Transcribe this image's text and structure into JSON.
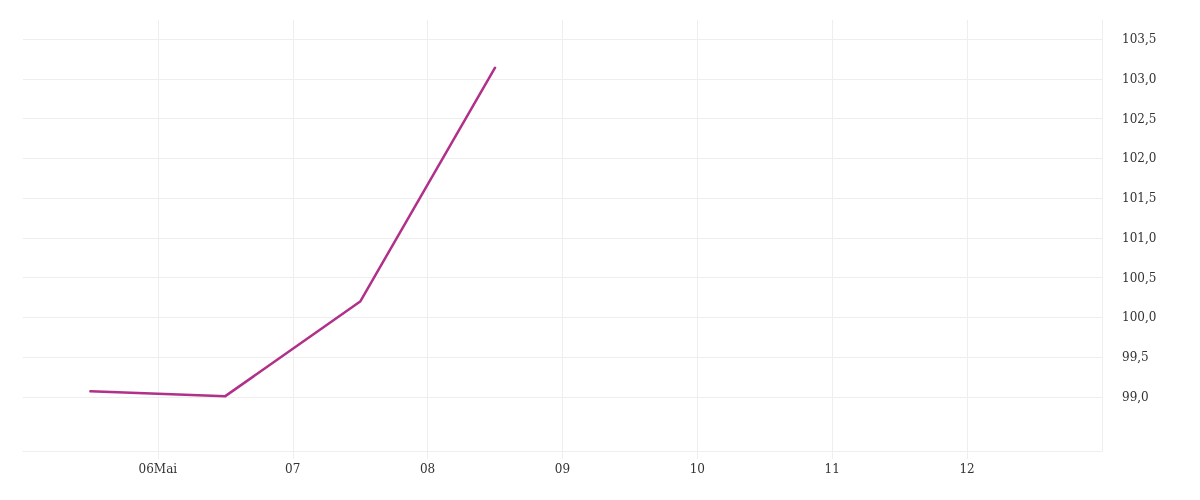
{
  "chart_data": {
    "type": "line",
    "x": [
      "--05-05T12:00",
      "--05-06T12:00",
      "--05-07T12:00",
      "--05-08T12:00"
    ],
    "series": [
      {
        "color": "#b0308a",
        "values": [
          99.07,
          99.01,
          100.2,
          103.14
        ]
      }
    ],
    "xlim": [
      "--05-05",
      "--05-13"
    ],
    "xticks": [
      {
        "value": "--05-06",
        "label": "06Mai"
      },
      {
        "value": "--05-07",
        "label": "07"
      },
      {
        "value": "--05-08",
        "label": "08"
      },
      {
        "value": "--05-09",
        "label": "09"
      },
      {
        "value": "--05-10",
        "label": "10"
      },
      {
        "value": "--05-11",
        "label": "11"
      },
      {
        "value": "--05-12",
        "label": "12"
      }
    ],
    "ylim": [
      98.32,
      103.74
    ],
    "yticks": [
      {
        "value": 99,
        "label": "99,0"
      },
      {
        "value": 99.5,
        "label": "99,5"
      },
      {
        "value": 100,
        "label": "100,0"
      },
      {
        "value": 100.5,
        "label": "100,5"
      },
      {
        "value": 101,
        "label": "101,0"
      },
      {
        "value": 101.5,
        "label": "101,5"
      },
      {
        "value": 102,
        "label": "102,0"
      },
      {
        "value": 102.5,
        "label": "102,5"
      },
      {
        "value": 103,
        "label": "103,0"
      },
      {
        "value": 103.5,
        "label": "103,5"
      }
    ],
    "grid": true,
    "marker": "none",
    "line_style": "solid"
  }
}
